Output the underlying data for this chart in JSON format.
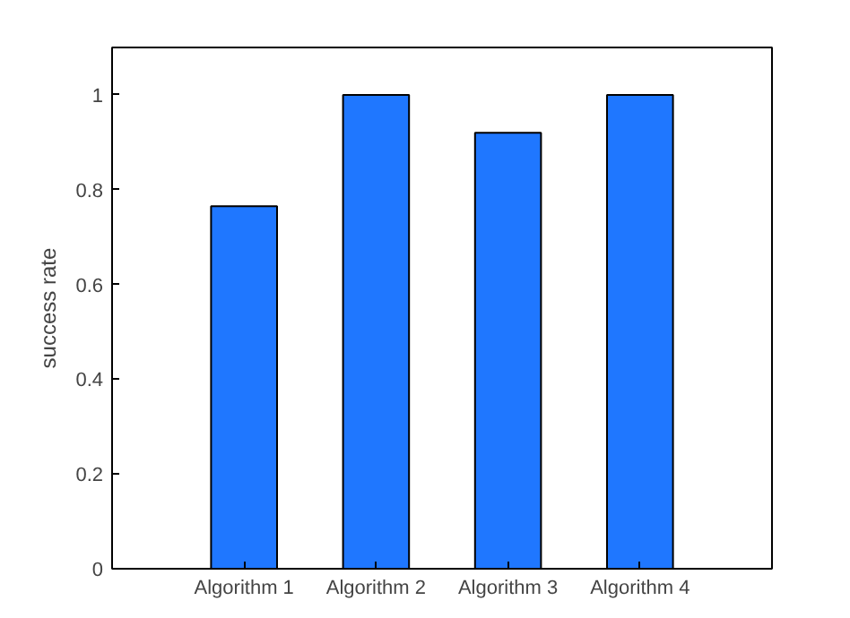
{
  "chart_data": {
    "type": "bar",
    "ylabel": "success rate",
    "categories": [
      "Algorithm 1",
      "Algorithm 2",
      "Algorithm 3",
      "Algorithm 4"
    ],
    "values": [
      0.765,
      1,
      0.92,
      1
    ],
    "color": "#1f77ff",
    "ylim": [
      0,
      1.1
    ],
    "yticks": [
      0,
      0.2,
      0.4,
      0.6,
      0.8,
      1
    ],
    "grid": false
  }
}
